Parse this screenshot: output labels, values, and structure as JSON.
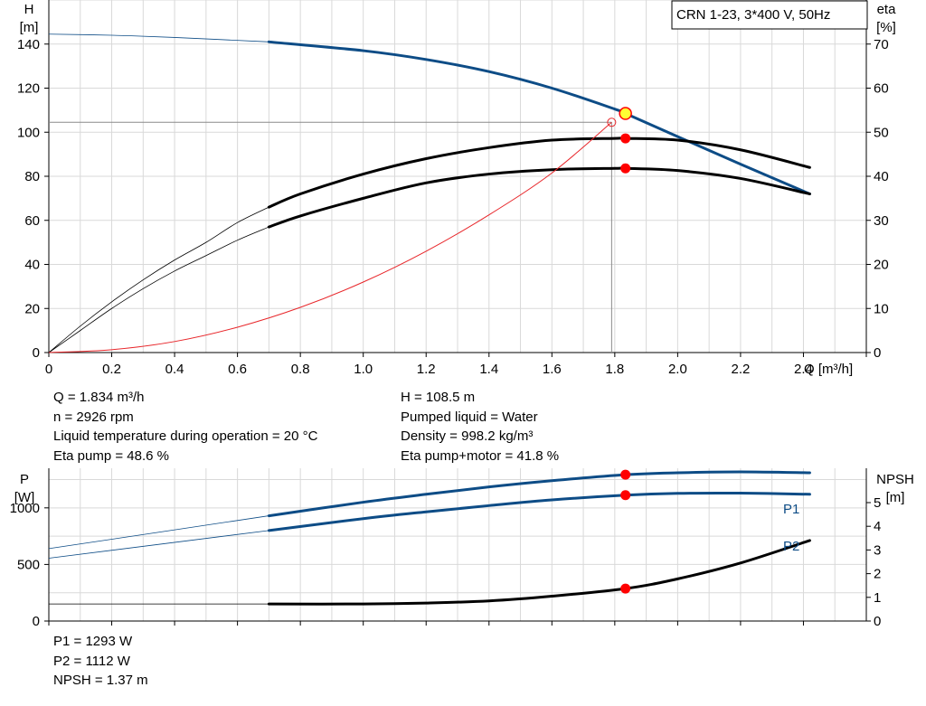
{
  "chart_data": [
    {
      "type": "line",
      "title": "CRN 1-23, 3*400 V, 50Hz",
      "xlabel": "Q [m³/h]",
      "ylabel": "H",
      "ylabel_unit": "[m]",
      "y2label": "eta",
      "y2label_unit": "[%]",
      "xlim": [
        0,
        2.6
      ],
      "ylim": [
        0,
        160
      ],
      "y2lim": [
        0,
        80
      ],
      "x_ticks": [
        0,
        0.2,
        0.4,
        0.6,
        0.8,
        1.0,
        1.2,
        1.4,
        1.6,
        1.8,
        2.0,
        2.2,
        2.4
      ],
      "x_tick_labels": [
        "0",
        "0.2",
        "0.4",
        "0.6",
        "0.8",
        "1.0",
        "1.2",
        "1.4",
        "1.6",
        "1.8",
        "2.0",
        "2.2",
        "2.4"
      ],
      "y_ticks": [
        0,
        20,
        40,
        60,
        80,
        100,
        120,
        140
      ],
      "y2_ticks": [
        0,
        10,
        20,
        30,
        40,
        50,
        60,
        70
      ],
      "grid": true,
      "series": [
        {
          "key": "H",
          "axis": "left",
          "color": "#0d4c86",
          "thick_from": 0.7,
          "x": [
            0,
            0.2,
            0.4,
            0.7,
            1.0,
            1.2,
            1.4,
            1.6,
            1.8,
            1.834,
            2.0,
            2.2,
            2.42
          ],
          "y": [
            144.5,
            144,
            143,
            141,
            137,
            133,
            127.5,
            120,
            110.5,
            108.5,
            98,
            85.5,
            72
          ]
        },
        {
          "key": "eta_pump",
          "axis": "right",
          "color": "#000000",
          "thick_from": 0.7,
          "x": [
            0,
            0.1,
            0.2,
            0.3,
            0.4,
            0.5,
            0.6,
            0.7,
            0.8,
            1.0,
            1.2,
            1.4,
            1.6,
            1.8,
            1.834,
            2.0,
            2.2,
            2.42
          ],
          "y": [
            0,
            6,
            11.5,
            16.5,
            21,
            25,
            29.5,
            33,
            36,
            40.5,
            44,
            46.5,
            48.2,
            48.6,
            48.6,
            48.2,
            46,
            42
          ]
        },
        {
          "key": "eta_total",
          "axis": "right",
          "color": "#000000",
          "thick_from": 0.7,
          "x": [
            0,
            0.1,
            0.2,
            0.3,
            0.4,
            0.5,
            0.6,
            0.7,
            0.8,
            1.0,
            1.2,
            1.4,
            1.6,
            1.8,
            1.834,
            2.0,
            2.2,
            2.42
          ],
          "y": [
            0,
            5,
            10,
            14.5,
            18.5,
            22,
            25.5,
            28.5,
            31,
            35,
            38.5,
            40.5,
            41.5,
            41.8,
            41.8,
            41.3,
            39.5,
            36
          ]
        },
        {
          "key": "system",
          "axis": "left",
          "color": "#e8262a",
          "thick_from": null,
          "x": [
            0,
            0.2,
            0.4,
            0.6,
            0.8,
            1.0,
            1.2,
            1.4,
            1.6,
            1.79
          ],
          "y": [
            0,
            1.3,
            5,
            11.5,
            20.5,
            32,
            46,
            62.5,
            81.5,
            104.5
          ]
        }
      ],
      "markers": [
        {
          "axis": "left",
          "x": 1.834,
          "y": 108.5,
          "style": "operating-point"
        },
        {
          "axis": "right",
          "x": 1.834,
          "y": 48.6,
          "style": "dot"
        },
        {
          "axis": "right",
          "x": 1.834,
          "y": 41.8,
          "style": "dot"
        },
        {
          "axis": "left",
          "x": 1.79,
          "y": 104.5,
          "style": "open-circle"
        }
      ],
      "guide_lines": {
        "x": 1.79,
        "y": 104.5
      }
    },
    {
      "type": "line",
      "ylabel": "P",
      "ylabel_unit": "[W]",
      "y2label": "NPSH",
      "y2label_unit": "[m]",
      "xlim": [
        0,
        2.6
      ],
      "ylim": [
        0,
        1350
      ],
      "y2lim": [
        0,
        6.45
      ],
      "y_ticks": [
        0,
        500,
        1000
      ],
      "y2_ticks": [
        0,
        1,
        2,
        3,
        4,
        5
      ],
      "grid": true,
      "series": [
        {
          "key": "P1",
          "name": "P1",
          "axis": "left",
          "color": "#0d4c86",
          "thick_from": 0.7,
          "x": [
            0,
            0.7,
            1.0,
            1.2,
            1.4,
            1.6,
            1.834,
            2.0,
            2.2,
            2.42
          ],
          "y": [
            640,
            930,
            1050,
            1120,
            1185,
            1240,
            1293,
            1310,
            1318,
            1310
          ]
        },
        {
          "key": "P2",
          "name": "P2",
          "axis": "left",
          "color": "#0d4c86",
          "thick_from": 0.7,
          "x": [
            0,
            0.7,
            1.0,
            1.2,
            1.4,
            1.6,
            1.834,
            2.0,
            2.2,
            2.42
          ],
          "y": [
            555,
            800,
            905,
            965,
            1020,
            1070,
            1112,
            1128,
            1130,
            1120
          ]
        },
        {
          "key": "NPSH",
          "axis": "right",
          "color": "#000000",
          "thick_from": 0.7,
          "x": [
            0,
            0.7,
            1.0,
            1.2,
            1.4,
            1.6,
            1.834,
            2.0,
            2.2,
            2.42
          ],
          "y": [
            0.72,
            0.72,
            0.72,
            0.76,
            0.85,
            1.05,
            1.37,
            1.78,
            2.45,
            3.4
          ]
        }
      ],
      "markers": [
        {
          "axis": "left",
          "x": 1.834,
          "y": 1293,
          "style": "dot"
        },
        {
          "axis": "left",
          "x": 1.834,
          "y": 1112,
          "style": "dot"
        },
        {
          "axis": "right",
          "x": 1.834,
          "y": 1.37,
          "style": "dot"
        }
      ]
    }
  ],
  "info_top": {
    "left": [
      "Q = 1.834 m³/h",
      "n = 2926 rpm",
      "Liquid temperature during operation = 20 °C",
      "Eta pump = 48.6 %"
    ],
    "right": [
      "H = 108.5 m",
      "Pumped liquid = Water",
      "Density = 998.2 kg/m³",
      "Eta pump+motor = 41.8 %"
    ]
  },
  "info_bottom": [
    "P1 = 1293 W",
    "P2 = 1112 W",
    "NPSH = 1.37 m"
  ],
  "colors": {
    "pump_blue": "#0d4c86",
    "system_red": "#e8262a",
    "marker_red": "#ff0000",
    "op_yellow": "#ffff33",
    "grid": "#d9d9d9"
  }
}
